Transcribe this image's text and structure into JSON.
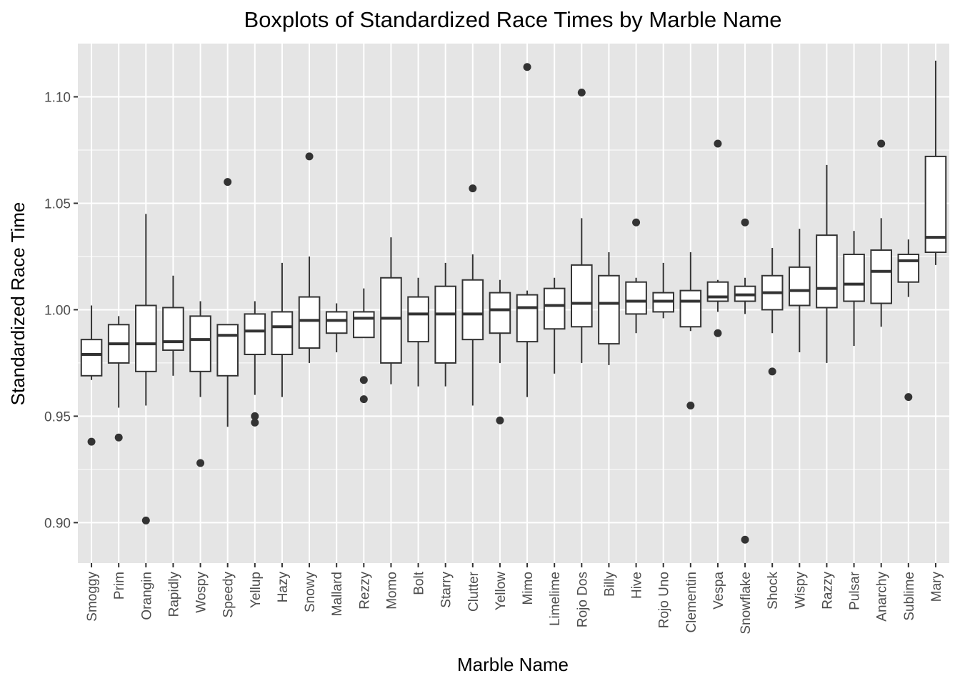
{
  "chart_data": {
    "type": "boxplot",
    "title": "Boxplots of Standardized Race Times by Marble Name",
    "xlabel": "Marble Name",
    "ylabel": "Standardized Race Time",
    "ylim": [
      0.881,
      1.125
    ],
    "yticks": [
      0.9,
      0.95,
      1.0,
      1.05,
      1.1
    ],
    "ytick_labels": [
      "0.90",
      "0.95",
      "1.00",
      "1.05",
      "1.10"
    ],
    "grid": true,
    "panel_background": "#e5e5e5",
    "grid_color": "#ffffff",
    "box_fill": "#ffffff",
    "box_stroke": "#333333",
    "categories": [
      "Smoggy",
      "Prim",
      "Orangin",
      "Rapidly",
      "Wospy",
      "Speedy",
      "Yellup",
      "Hazy",
      "Snowy",
      "Mallard",
      "Rezzy",
      "Momo",
      "Bolt",
      "Starry",
      "Clutter",
      "Yellow",
      "Mimo",
      "Limelime",
      "Rojo Dos",
      "Billy",
      "Hive",
      "Rojo Uno",
      "Clementin",
      "Vespa",
      "Snowflake",
      "Shock",
      "Wispy",
      "Razzy",
      "Pulsar",
      "Anarchy",
      "Sublime",
      "Mary"
    ],
    "boxes": [
      {
        "name": "Smoggy",
        "whisker_low": 0.967,
        "q1": 0.969,
        "median": 0.979,
        "q3": 0.986,
        "whisker_high": 1.002,
        "outliers": [
          0.938
        ]
      },
      {
        "name": "Prim",
        "whisker_low": 0.954,
        "q1": 0.975,
        "median": 0.984,
        "q3": 0.993,
        "whisker_high": 0.997,
        "outliers": [
          0.94
        ]
      },
      {
        "name": "Orangin",
        "whisker_low": 0.955,
        "q1": 0.971,
        "median": 0.984,
        "q3": 1.002,
        "whisker_high": 1.045,
        "outliers": [
          0.901
        ]
      },
      {
        "name": "Rapidly",
        "whisker_low": 0.969,
        "q1": 0.981,
        "median": 0.985,
        "q3": 1.001,
        "whisker_high": 1.016,
        "outliers": []
      },
      {
        "name": "Wospy",
        "whisker_low": 0.959,
        "q1": 0.971,
        "median": 0.986,
        "q3": 0.997,
        "whisker_high": 1.004,
        "outliers": [
          0.928
        ]
      },
      {
        "name": "Speedy",
        "whisker_low": 0.945,
        "q1": 0.969,
        "median": 0.988,
        "q3": 0.993,
        "whisker_high": 0.993,
        "outliers": [
          1.06
        ]
      },
      {
        "name": "Yellup",
        "whisker_low": 0.96,
        "q1": 0.979,
        "median": 0.99,
        "q3": 0.998,
        "whisker_high": 1.004,
        "outliers": [
          0.95,
          0.947
        ]
      },
      {
        "name": "Hazy",
        "whisker_low": 0.959,
        "q1": 0.979,
        "median": 0.992,
        "q3": 0.999,
        "whisker_high": 1.022,
        "outliers": []
      },
      {
        "name": "Snowy",
        "whisker_low": 0.975,
        "q1": 0.982,
        "median": 0.995,
        "q3": 1.006,
        "whisker_high": 1.025,
        "outliers": [
          1.072
        ]
      },
      {
        "name": "Mallard",
        "whisker_low": 0.98,
        "q1": 0.989,
        "median": 0.995,
        "q3": 0.999,
        "whisker_high": 1.003,
        "outliers": []
      },
      {
        "name": "Rezzy",
        "whisker_low": 0.987,
        "q1": 0.987,
        "median": 0.996,
        "q3": 0.999,
        "whisker_high": 1.01,
        "outliers": [
          0.967,
          0.958
        ]
      },
      {
        "name": "Momo",
        "whisker_low": 0.965,
        "q1": 0.975,
        "median": 0.996,
        "q3": 1.015,
        "whisker_high": 1.034,
        "outliers": []
      },
      {
        "name": "Bolt",
        "whisker_low": 0.964,
        "q1": 0.985,
        "median": 0.998,
        "q3": 1.006,
        "whisker_high": 1.015,
        "outliers": []
      },
      {
        "name": "Starry",
        "whisker_low": 0.964,
        "q1": 0.975,
        "median": 0.998,
        "q3": 1.011,
        "whisker_high": 1.022,
        "outliers": []
      },
      {
        "name": "Clutter",
        "whisker_low": 0.955,
        "q1": 0.986,
        "median": 0.998,
        "q3": 1.014,
        "whisker_high": 1.026,
        "outliers": [
          1.057
        ]
      },
      {
        "name": "Yellow",
        "whisker_low": 0.975,
        "q1": 0.989,
        "median": 1.0,
        "q3": 1.008,
        "whisker_high": 1.014,
        "outliers": [
          0.948
        ]
      },
      {
        "name": "Mimo",
        "whisker_low": 0.959,
        "q1": 0.985,
        "median": 1.001,
        "q3": 1.007,
        "whisker_high": 1.009,
        "outliers": [
          1.114
        ]
      },
      {
        "name": "Limelime",
        "whisker_low": 0.97,
        "q1": 0.991,
        "median": 1.002,
        "q3": 1.01,
        "whisker_high": 1.015,
        "outliers": []
      },
      {
        "name": "Rojo Dos",
        "whisker_low": 0.975,
        "q1": 0.992,
        "median": 1.003,
        "q3": 1.021,
        "whisker_high": 1.043,
        "outliers": [
          1.102
        ]
      },
      {
        "name": "Billy",
        "whisker_low": 0.974,
        "q1": 0.984,
        "median": 1.003,
        "q3": 1.016,
        "whisker_high": 1.027,
        "outliers": []
      },
      {
        "name": "Hive",
        "whisker_low": 0.989,
        "q1": 0.998,
        "median": 1.004,
        "q3": 1.013,
        "whisker_high": 1.015,
        "outliers": [
          1.041
        ]
      },
      {
        "name": "Rojo Uno",
        "whisker_low": 0.996,
        "q1": 0.999,
        "median": 1.004,
        "q3": 1.008,
        "whisker_high": 1.022,
        "outliers": []
      },
      {
        "name": "Clementin",
        "whisker_low": 0.99,
        "q1": 0.992,
        "median": 1.004,
        "q3": 1.009,
        "whisker_high": 1.027,
        "outliers": [
          0.955
        ]
      },
      {
        "name": "Vespa",
        "whisker_low": 0.999,
        "q1": 1.004,
        "median": 1.006,
        "q3": 1.013,
        "whisker_high": 1.014,
        "outliers": [
          1.078,
          0.989
        ]
      },
      {
        "name": "Snowflake",
        "whisker_low": 0.998,
        "q1": 1.004,
        "median": 1.007,
        "q3": 1.011,
        "whisker_high": 1.015,
        "outliers": [
          1.041,
          0.892
        ]
      },
      {
        "name": "Shock",
        "whisker_low": 0.989,
        "q1": 1.0,
        "median": 1.008,
        "q3": 1.016,
        "whisker_high": 1.029,
        "outliers": [
          0.971
        ]
      },
      {
        "name": "Wispy",
        "whisker_low": 0.98,
        "q1": 1.002,
        "median": 1.009,
        "q3": 1.02,
        "whisker_high": 1.038,
        "outliers": []
      },
      {
        "name": "Razzy",
        "whisker_low": 0.975,
        "q1": 1.001,
        "median": 1.01,
        "q3": 1.035,
        "whisker_high": 1.068,
        "outliers": []
      },
      {
        "name": "Pulsar",
        "whisker_low": 0.983,
        "q1": 1.004,
        "median": 1.012,
        "q3": 1.026,
        "whisker_high": 1.037,
        "outliers": []
      },
      {
        "name": "Anarchy",
        "whisker_low": 0.992,
        "q1": 1.003,
        "median": 1.018,
        "q3": 1.028,
        "whisker_high": 1.043,
        "outliers": [
          1.078
        ]
      },
      {
        "name": "Sublime",
        "whisker_low": 1.006,
        "q1": 1.013,
        "median": 1.023,
        "q3": 1.026,
        "whisker_high": 1.033,
        "outliers": [
          0.959
        ]
      },
      {
        "name": "Mary",
        "whisker_low": 1.021,
        "q1": 1.027,
        "median": 1.034,
        "q3": 1.072,
        "whisker_high": 1.117,
        "outliers": []
      }
    ]
  }
}
